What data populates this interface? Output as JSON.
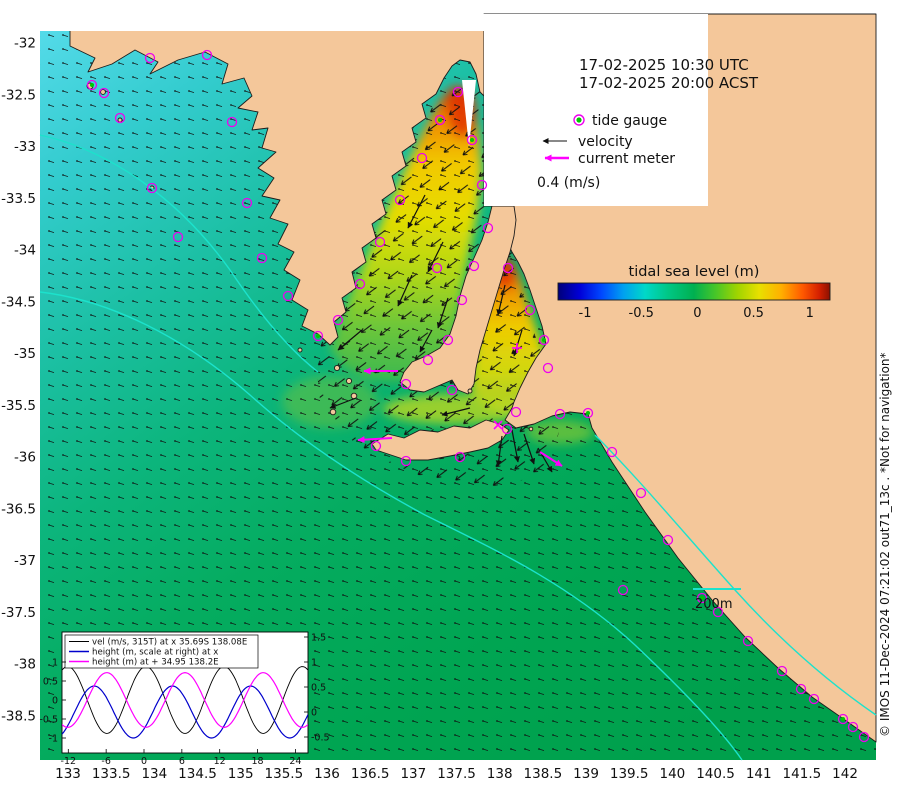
{
  "header": {
    "timestamp_utc": "17-02-2025 10:30 UTC",
    "timestamp_local": "17-02-2025 20:00 ACST"
  },
  "legend": {
    "tide_gauge": "tide gauge",
    "velocity": "velocity",
    "current_meter": "current meter",
    "scale_label": "0.4 (m/s)"
  },
  "colorbar": {
    "title": "tidal sea level (m)",
    "title_color": "#a40000",
    "ticks": [
      "-1",
      "-0.5",
      "0",
      "0.5",
      "1"
    ]
  },
  "contour_label": "200m",
  "watermark": "© IMOS 11-Dec-2024 07:21:02 out71_13c . *Not for navigation*",
  "axes": {
    "x_ticks": [
      "133",
      "133.5",
      "134",
      "134.5",
      "135",
      "135.5",
      "136",
      "136.5",
      "137",
      "137.5",
      "138",
      "138.5",
      "139",
      "139.5",
      "140",
      "140.5",
      "141",
      "141.5",
      "142"
    ],
    "y_ticks": [
      "-32",
      "-32.5",
      "-33",
      "-33.5",
      "-34",
      "-34.5",
      "-35",
      "-35.5",
      "-36",
      "-36.5",
      "-37",
      "-37.5",
      "-38",
      "-38.5"
    ]
  },
  "chart_data": {
    "type": "line",
    "x_ticks": [
      "-12",
      "-6",
      "0",
      "6",
      "12",
      "18",
      "24"
    ],
    "x_range": [
      -13,
      26
    ],
    "left_ticks": [
      "1",
      "0.5",
      "0",
      "-0.5",
      "-1"
    ],
    "right_ticks": [
      "1.5",
      "1",
      "0.5",
      "0",
      "-0.5"
    ],
    "legend_position": "top-left",
    "series": [
      {
        "name": "vel (m/s, 315T) at x 35.69S 138.08E",
        "color": "#000000",
        "axis": "left",
        "amplitude": 0.88,
        "period_h": 12.4,
        "phase_h": -15.2
      },
      {
        "name": "height (m, scale at right) at x",
        "color": "#0000cc",
        "axis": "right",
        "amplitude": 0.52,
        "period_h": 12.4,
        "phase_h": -11.0
      },
      {
        "name": "height (m) at + 34.95 138.2E",
        "color": "#ff00ff",
        "axis": "left",
        "amplitude": 0.72,
        "period_h": 12.4,
        "phase_h": -9.0
      }
    ]
  }
}
